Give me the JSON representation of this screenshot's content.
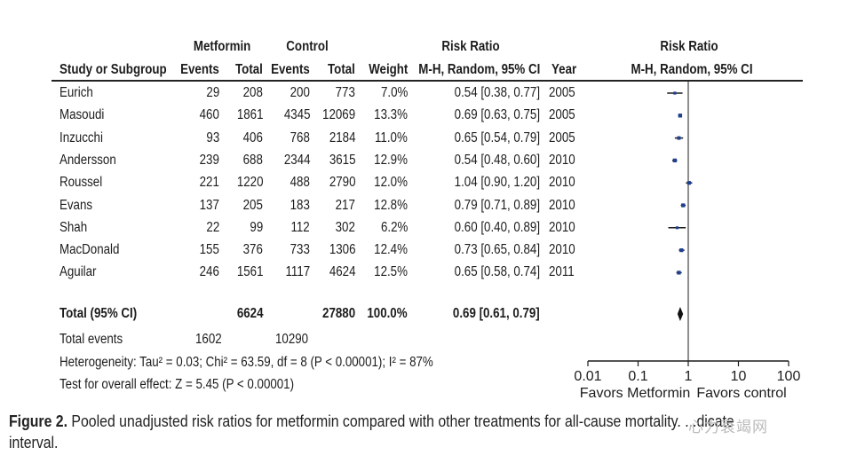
{
  "header": {
    "group1": "Metformin",
    "group2": "Control",
    "rr_title": "Risk Ratio",
    "plot_title": "Risk Ratio",
    "col_study": "Study or Subgroup",
    "col_events1": "Events",
    "col_total1": "Total",
    "col_events2": "Events",
    "col_total2": "Total",
    "col_weight": "Weight",
    "col_method": "M-H, Random, 95% CI",
    "col_year": "Year",
    "plot_method": "M-H, Random, 95% CI"
  },
  "studies": [
    {
      "name": "Eurich",
      "events1": "29",
      "total1": "208",
      "events2": "200",
      "total2": "773",
      "weight": "7.0%",
      "ci": "0.54 [0.38, 0.77]",
      "year": "2005"
    },
    {
      "name": "Masoudi",
      "events1": "460",
      "total1": "1861",
      "events2": "4345",
      "total2": "12069",
      "weight": "13.3%",
      "ci": "0.69 [0.63, 0.75]",
      "year": "2005"
    },
    {
      "name": "Inzucchi",
      "events1": "93",
      "total1": "406",
      "events2": "768",
      "total2": "2184",
      "weight": "11.0%",
      "ci": "0.65 [0.54, 0.79]",
      "year": "2005"
    },
    {
      "name": "Andersson",
      "events1": "239",
      "total1": "688",
      "events2": "2344",
      "total2": "3615",
      "weight": "12.9%",
      "ci": "0.54 [0.48, 0.60]",
      "year": "2010"
    },
    {
      "name": "Roussel",
      "events1": "221",
      "total1": "1220",
      "events2": "488",
      "total2": "2790",
      "weight": "12.0%",
      "ci": "1.04 [0.90, 1.20]",
      "year": "2010"
    },
    {
      "name": "Evans",
      "events1": "137",
      "total1": "205",
      "events2": "183",
      "total2": "217",
      "weight": "12.8%",
      "ci": "0.79 [0.71, 0.89]",
      "year": "2010"
    },
    {
      "name": "Shah",
      "events1": "22",
      "total1": "99",
      "events2": "112",
      "total2": "302",
      "weight": "6.2%",
      "ci": "0.60 [0.40, 0.89]",
      "year": "2010"
    },
    {
      "name": "MacDonald",
      "events1": "155",
      "total1": "376",
      "events2": "733",
      "total2": "1306",
      "weight": "12.4%",
      "ci": "0.73 [0.65, 0.84]",
      "year": "2010"
    },
    {
      "name": "Aguilar",
      "events1": "246",
      "total1": "1561",
      "events2": "1117",
      "total2": "4624",
      "weight": "12.5%",
      "ci": "0.65 [0.58, 0.74]",
      "year": "2011"
    }
  ],
  "total": {
    "label": "Total (95% CI)",
    "total1": "6624",
    "total2": "27880",
    "weight": "100.0%",
    "ci": "0.69 [0.61, 0.79]"
  },
  "total_events": {
    "label": "Total events",
    "events1": "1602",
    "events2": "10290"
  },
  "footer": {
    "heterogeneity": "Heterogeneity: Tau² = 0.03; Chi² = 63.59, df = 8 (P < 0.00001); I² = 87%",
    "overall": "Test for overall effect: Z = 5.45 (P < 0.00001)"
  },
  "caption": {
    "figure_label": "Figure 2.",
    "line1": "Pooled unadjusted risk ratios for metformin compared with other treatments for all-cause mortality.",
    "line1_tail": "...dicate",
    "line2": "interval."
  },
  "watermark": "心力衰竭网",
  "colors": {
    "marker": "#1f3f8f",
    "line": "#1c1c1c"
  },
  "chart_data": {
    "type": "forest",
    "scale": "log",
    "xlim": [
      0.01,
      100
    ],
    "xticks": [
      0.01,
      0.1,
      1,
      10,
      100
    ],
    "xtick_labels": [
      "0.01",
      "0.1",
      "1",
      "10",
      "100"
    ],
    "favors_left": "Favors Metformin",
    "favors_right": "Favors control",
    "series": [
      {
        "name": "Eurich",
        "estimate": 0.54,
        "lower": 0.38,
        "upper": 0.77,
        "weight": 7.0
      },
      {
        "name": "Masoudi",
        "estimate": 0.69,
        "lower": 0.63,
        "upper": 0.75,
        "weight": 13.3
      },
      {
        "name": "Inzucchi",
        "estimate": 0.65,
        "lower": 0.54,
        "upper": 0.79,
        "weight": 11.0
      },
      {
        "name": "Andersson",
        "estimate": 0.54,
        "lower": 0.48,
        "upper": 0.6,
        "weight": 12.9
      },
      {
        "name": "Roussel",
        "estimate": 1.04,
        "lower": 0.9,
        "upper": 1.2,
        "weight": 12.0
      },
      {
        "name": "Evans",
        "estimate": 0.79,
        "lower": 0.71,
        "upper": 0.89,
        "weight": 12.8
      },
      {
        "name": "Shah",
        "estimate": 0.6,
        "lower": 0.4,
        "upper": 0.89,
        "weight": 6.2
      },
      {
        "name": "MacDonald",
        "estimate": 0.73,
        "lower": 0.65,
        "upper": 0.84,
        "weight": 12.4
      },
      {
        "name": "Aguilar",
        "estimate": 0.65,
        "lower": 0.58,
        "upper": 0.74,
        "weight": 12.5
      }
    ],
    "pooled": {
      "name": "Total (95% CI)",
      "estimate": 0.69,
      "lower": 0.61,
      "upper": 0.79
    }
  }
}
